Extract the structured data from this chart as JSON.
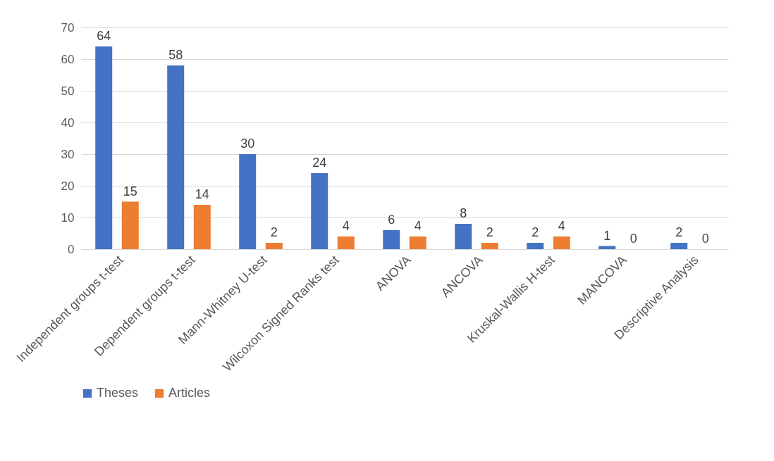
{
  "chart_data": {
    "type": "bar",
    "categories": [
      "Independent groups t-test",
      "Dependent groups t-test",
      "Mann-Whitney U-test",
      "Wilcoxon Signed Ranks test",
      "ANOVA",
      "ANCOVA",
      "Kruskal-Wallis H-test",
      "MANCOVA",
      "Descriptive Analysis"
    ],
    "series": [
      {
        "name": "Theses",
        "color": "#4472c4",
        "values": [
          64,
          58,
          30,
          24,
          6,
          8,
          2,
          1,
          2
        ]
      },
      {
        "name": "Articles",
        "color": "#ed7d31",
        "values": [
          15,
          14,
          2,
          4,
          4,
          2,
          4,
          0,
          0
        ]
      }
    ],
    "ylim": [
      0,
      70
    ],
    "yticks": [
      0,
      10,
      20,
      30,
      40,
      50,
      60,
      70
    ],
    "grid": "y",
    "legend": "bottom",
    "data_labels": true
  }
}
